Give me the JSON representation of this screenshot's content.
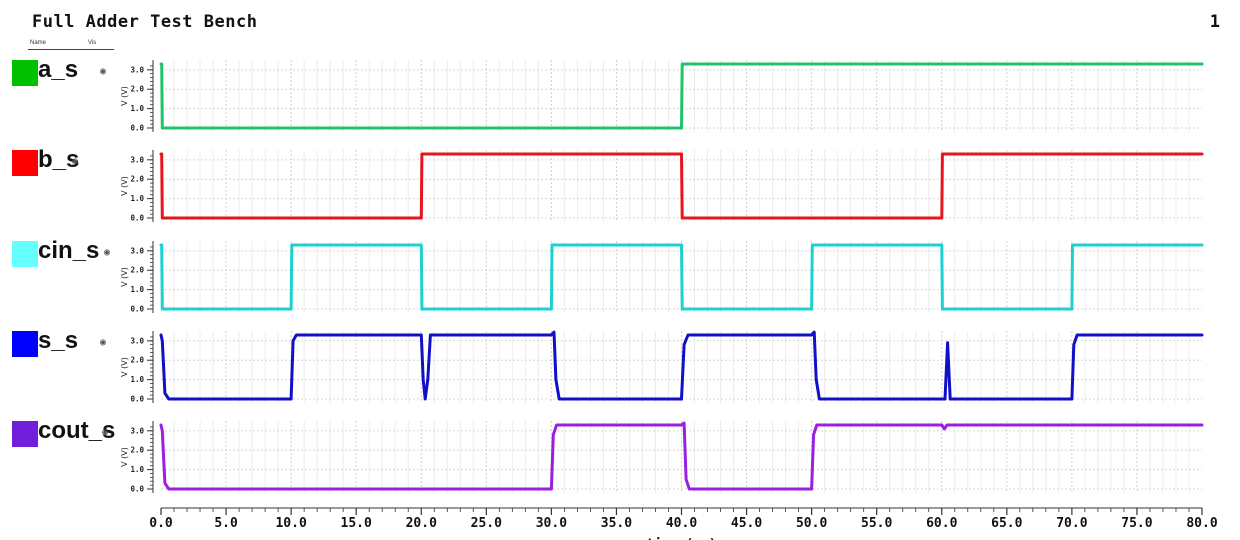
{
  "header": {
    "title": "Full Adder Test Bench",
    "page_number": "1",
    "col_name": "Name",
    "col_vis": "Vis"
  },
  "icons": {
    "visibility": "eye-icon"
  },
  "chart_data": {
    "type": "line",
    "title": "Full Adder Test Bench",
    "xlabel": "time (ns)",
    "xlim": [
      0,
      80
    ],
    "x_ticks": [
      "0.0",
      "5.0",
      "10.0",
      "15.0",
      "20.0",
      "25.0",
      "30.0",
      "35.0",
      "40.0",
      "45.0",
      "50.0",
      "55.0",
      "60.0",
      "65.0",
      "70.0",
      "75.0",
      "80.0"
    ],
    "grid": true,
    "panels": [
      {
        "name": "a_s",
        "color": "#00c000",
        "trace_color": "#1fc46a",
        "ylabel": "V (V)",
        "ylim": [
          0,
          3.3
        ],
        "y_ticks": [
          "0.0",
          "1.0",
          "2.0",
          "3.0"
        ],
        "x": [
          0,
          0.05,
          0.1,
          40,
          40.05,
          80
        ],
        "y": [
          3.3,
          3.3,
          0,
          0,
          3.3,
          3.3
        ]
      },
      {
        "name": "b_s",
        "color": "#ff0000",
        "trace_color": "#e8141c",
        "ylabel": "V (V)",
        "ylim": [
          0,
          3.3
        ],
        "y_ticks": [
          "0.0",
          "1.0",
          "2.0",
          "3.0"
        ],
        "x": [
          0,
          0.05,
          0.1,
          20,
          20.05,
          40,
          40.05,
          60,
          60.05,
          80
        ],
        "y": [
          3.3,
          3.3,
          0,
          0,
          3.3,
          3.3,
          0,
          0,
          3.3,
          3.3
        ]
      },
      {
        "name": "cin_s",
        "color": "#66ffff",
        "trace_color": "#1fd0d0",
        "ylabel": "V (V)",
        "ylim": [
          0,
          3.3
        ],
        "y_ticks": [
          "0.0",
          "1.0",
          "2.0",
          "3.0"
        ],
        "x": [
          0,
          0.05,
          0.1,
          10,
          10.05,
          20,
          20.05,
          30,
          30.05,
          40,
          40.05,
          50,
          50.05,
          60,
          60.05,
          70,
          70.05,
          80
        ],
        "y": [
          3.3,
          3.3,
          0,
          0,
          3.3,
          3.3,
          0,
          0,
          3.3,
          3.3,
          0,
          0,
          3.3,
          3.3,
          0,
          0,
          3.3,
          3.3
        ]
      },
      {
        "name": "s_s",
        "color": "#0000ff",
        "trace_color": "#1010c8",
        "ylabel": "V (V)",
        "ylim": [
          0,
          3.3
        ],
        "y_ticks": [
          "0.0",
          "1.0",
          "2.0",
          "3.0"
        ],
        "x": [
          0,
          0.1,
          0.3,
          0.6,
          10,
          10.15,
          10.4,
          20,
          20.15,
          20.3,
          20.5,
          20.7,
          30,
          30.2,
          30.35,
          30.6,
          40,
          40.2,
          40.5,
          50,
          50.2,
          50.35,
          50.6,
          60,
          60.25,
          60.45,
          60.65,
          70,
          70.15,
          70.4,
          80
        ],
        "y": [
          3.3,
          3.0,
          0.3,
          0,
          0,
          3.0,
          3.3,
          3.3,
          1.0,
          0,
          1.0,
          3.3,
          3.3,
          3.45,
          1.0,
          0,
          0,
          2.8,
          3.3,
          3.3,
          3.45,
          1.0,
          0,
          0,
          0,
          2.9,
          0,
          0,
          2.8,
          3.3,
          3.3
        ]
      },
      {
        "name": "cout_s",
        "color": "#7020d8",
        "trace_color": "#9b1fe0",
        "ylabel": "V (V)",
        "ylim": [
          0,
          3.3
        ],
        "y_ticks": [
          "0.0",
          "1.0",
          "2.0",
          "3.0"
        ],
        "x": [
          0,
          0.1,
          0.3,
          0.6,
          30,
          30.15,
          30.4,
          40,
          40.2,
          40.35,
          40.6,
          50,
          50.15,
          50.4,
          60,
          60.2,
          60.4,
          80
        ],
        "y": [
          3.3,
          3.0,
          0.3,
          0,
          0,
          2.8,
          3.3,
          3.3,
          3.4,
          0.5,
          0,
          0,
          2.8,
          3.3,
          3.3,
          3.1,
          3.3,
          3.3
        ]
      }
    ]
  }
}
